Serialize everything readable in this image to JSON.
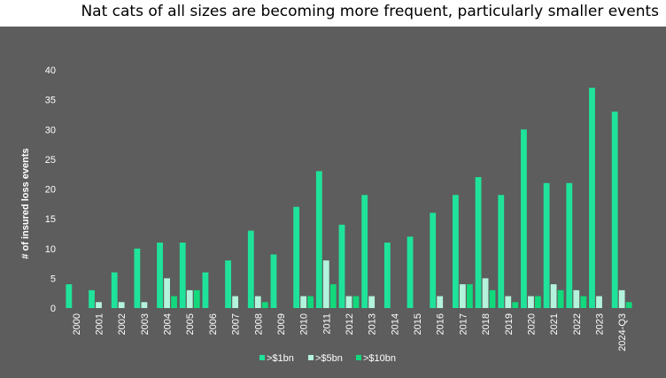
{
  "chart_data": {
    "type": "bar",
    "title": "Nat cats of all sizes are becoming more frequent, particularly smaller events",
    "ylabel": "# of insured loss events",
    "ylim": [
      0,
      40
    ],
    "yticks": [
      "0",
      "5",
      "10",
      "15",
      "20",
      "25",
      "30",
      "35",
      "40"
    ],
    "categories": [
      "2000",
      "2001",
      "2002",
      "2003",
      "2004",
      "2005",
      "2006",
      "2007",
      "2008",
      "2009",
      "2010",
      "2011",
      "2012",
      "2013",
      "2014",
      "2015",
      "2016",
      "2017",
      "2018",
      "2019",
      "2020",
      "2021",
      "2022",
      "2023",
      "2024-Q3"
    ],
    "series": [
      {
        "name": ">$1bn",
        "color": "#1fe39a",
        "values": [
          4,
          3,
          6,
          10,
          11,
          11,
          6,
          8,
          13,
          9,
          17,
          23,
          14,
          19,
          11,
          12,
          16,
          19,
          22,
          19,
          30,
          21,
          21,
          37,
          33
        ]
      },
      {
        "name": ">$5bn",
        "color": "#b3f3dc",
        "values": [
          0,
          1,
          1,
          1,
          5,
          3,
          0,
          2,
          2,
          0,
          2,
          8,
          2,
          2,
          0,
          0,
          2,
          4,
          5,
          2,
          2,
          4,
          3,
          2,
          3
        ]
      },
      {
        "name": ">$10bn",
        "color": "#12d97c",
        "values": [
          0,
          0,
          0,
          0,
          2,
          3,
          0,
          0,
          1,
          0,
          2,
          4,
          2,
          0,
          0,
          0,
          0,
          4,
          3,
          1,
          2,
          3,
          2,
          0,
          1
        ]
      }
    ],
    "legend_position": "bottom-center"
  }
}
